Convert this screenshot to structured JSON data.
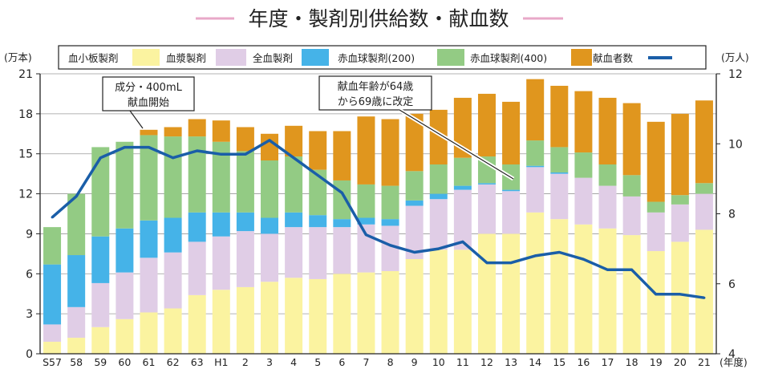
{
  "chart_data": {
    "type": "bar",
    "title": "年度・製剤別供給数・献血数",
    "left_unit": "(万本)",
    "right_unit": "(万人)",
    "x_unit": "(年度)",
    "categories": [
      "S57",
      "58",
      "59",
      "60",
      "61",
      "62",
      "63",
      "H1",
      "2",
      "3",
      "4",
      "5",
      "6",
      "7",
      "8",
      "9",
      "10",
      "11",
      "12",
      "13",
      "14",
      "15",
      "16",
      "17",
      "18",
      "19",
      "20",
      "21"
    ],
    "ylim_left": [
      0,
      21
    ],
    "ylim_right": [
      4,
      12
    ],
    "left_ticks": [
      0,
      3,
      6,
      9,
      12,
      15,
      18,
      21
    ],
    "right_ticks": [
      4,
      6,
      8,
      10,
      12
    ],
    "grid": true,
    "legend_position": "top",
    "series": [
      {
        "name": "血小板製剤",
        "color": "#fbf3a0",
        "values": [
          0.9,
          1.2,
          2.0,
          2.6,
          3.1,
          3.4,
          4.4,
          4.8,
          5.0,
          5.4,
          5.7,
          5.6,
          6.0,
          6.1,
          6.2,
          7.1,
          7.8,
          7.8,
          9.0,
          9.0,
          10.6,
          10.1,
          9.7,
          9.4,
          8.9,
          7.7,
          8.4,
          9.3
        ]
      },
      {
        "name": "血漿製剤",
        "color": "#e0cde6",
        "values": [
          1.3,
          2.3,
          3.3,
          3.5,
          4.1,
          4.2,
          4.0,
          4.0,
          4.2,
          3.6,
          3.8,
          3.9,
          3.5,
          3.6,
          3.4,
          4.0,
          3.8,
          4.5,
          3.7,
          3.2,
          3.4,
          3.4,
          3.5,
          3.2,
          2.9,
          2.9,
          2.8,
          2.7
        ]
      },
      {
        "name": "全血製剤",
        "color": "#45b3e8",
        "values": [
          4.5,
          3.9,
          3.5,
          3.3,
          2.8,
          2.6,
          2.2,
          1.8,
          1.4,
          1.2,
          1.1,
          0.9,
          0.6,
          0.5,
          0.5,
          0.4,
          0.4,
          0.3,
          0.1,
          0.1,
          0.1,
          0.1,
          0.0,
          0.0,
          0.0,
          0.0,
          0.0,
          0.0
        ]
      },
      {
        "name": "赤血球製剤(200)",
        "color": "#93cb84",
        "values": [
          2.8,
          4.6,
          6.7,
          6.5,
          6.4,
          6.1,
          5.7,
          5.3,
          4.6,
          4.3,
          4.2,
          3.4,
          2.9,
          2.5,
          2.5,
          2.2,
          2.2,
          2.1,
          2.0,
          1.9,
          1.9,
          1.9,
          1.9,
          1.6,
          1.6,
          0.8,
          0.7,
          0.8
        ]
      },
      {
        "name": "赤血球製剤(400)",
        "color": "#e0961e",
        "values": [
          0.0,
          0.0,
          0.0,
          0.0,
          0.4,
          0.7,
          1.3,
          1.6,
          1.8,
          2.0,
          2.3,
          2.9,
          3.7,
          5.1,
          5.0,
          4.3,
          4.1,
          4.5,
          4.7,
          4.7,
          4.6,
          4.6,
          4.6,
          5.0,
          5.4,
          6.0,
          6.1,
          6.2
        ]
      },
      {
        "name": "献血者数",
        "color": "#1a5ea8",
        "values": [
          7.9,
          8.5,
          9.6,
          9.9,
          9.9,
          9.6,
          9.8,
          9.7,
          9.7,
          10.1,
          9.6,
          9.1,
          8.6,
          7.4,
          7.1,
          6.9,
          7.0,
          7.2,
          6.6,
          6.6,
          6.8,
          6.9,
          6.7,
          6.4,
          6.4,
          5.7,
          5.7,
          5.6
        ]
      }
    ],
    "annotations": [
      {
        "text": [
          "成分・400mL",
          "献血開始"
        ]
      },
      {
        "text": [
          "献血年齢が64歳",
          "から69歳に改定"
        ]
      }
    ]
  }
}
